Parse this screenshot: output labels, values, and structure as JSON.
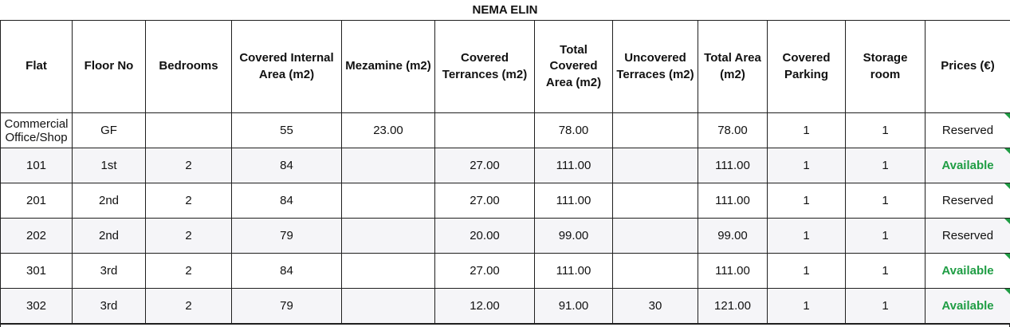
{
  "title": "NEMA ELIN",
  "status_colors": {
    "available": "#1f9d44",
    "reserved": "#111111"
  },
  "table": {
    "columns": [
      "Flat",
      "Floor No",
      "Bedrooms",
      "Covered Internal Area (m2)",
      "Mezamine (m2)",
      "Covered Terrances (m2)",
      "Total Covered Area (m2)",
      "Uncovered Terraces (m2)",
      "Total Area (m2)",
      "Covered Parking",
      "Storage room",
      "Prices (€)"
    ],
    "rows": [
      {
        "cells": [
          "Commercial Office/Shop",
          "GF",
          "",
          "55",
          "23.00",
          "",
          "78.00",
          "",
          "78.00",
          "1",
          "1"
        ],
        "price": "Reserved",
        "price_status": "reserved"
      },
      {
        "cells": [
          "101",
          "1st",
          "2",
          "84",
          "",
          "27.00",
          "111.00",
          "",
          "111.00",
          "1",
          "1"
        ],
        "price": "Available",
        "price_status": "available"
      },
      {
        "cells": [
          "201",
          "2nd",
          "2",
          "84",
          "",
          "27.00",
          "111.00",
          "",
          "111.00",
          "1",
          "1"
        ],
        "price": "Reserved",
        "price_status": "reserved"
      },
      {
        "cells": [
          "202",
          "2nd",
          "2",
          "79",
          "",
          "20.00",
          "99.00",
          "",
          "99.00",
          "1",
          "1"
        ],
        "price": "Reserved",
        "price_status": "reserved"
      },
      {
        "cells": [
          "301",
          "3rd",
          "2",
          "84",
          "",
          "27.00",
          "111.00",
          "",
          "111.00",
          "1",
          "1"
        ],
        "price": "Available",
        "price_status": "available"
      },
      {
        "cells": [
          "302",
          "3rd",
          "2",
          "79",
          "",
          "12.00",
          "91.00",
          "30",
          "121.00",
          "1",
          "1"
        ],
        "price": "Available",
        "price_status": "available"
      }
    ]
  }
}
